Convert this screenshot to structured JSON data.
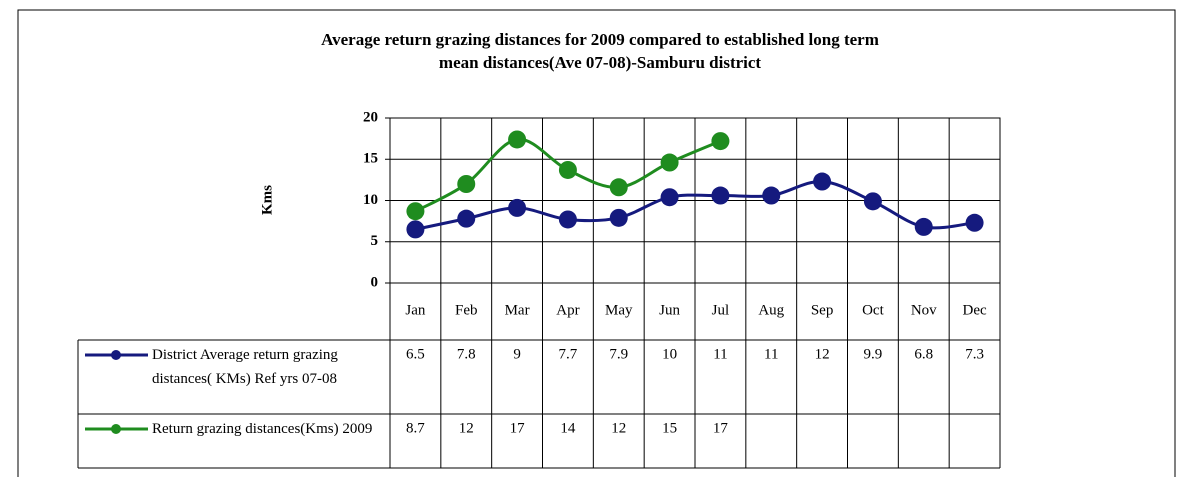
{
  "chart_data": {
    "type": "line",
    "title": "Average return grazing distances for 2009 compared to established long term mean distances(Ave 07-08)-Samburu district",
    "y_label": "Kms",
    "categories": [
      "Jan",
      "Feb",
      "Mar",
      "Apr",
      "May",
      "Jun",
      "Jul",
      "Aug",
      "Sep",
      "Oct",
      "Nov",
      "Dec"
    ],
    "series": [
      {
        "name": "District Average return grazing distances( KMs) Ref yrs 07-08",
        "color": "#151a7e",
        "values": [
          6.5,
          7.8,
          9.1,
          7.7,
          7.9,
          10.4,
          10.6,
          10.6,
          12.3,
          9.9,
          6.8,
          7.3
        ],
        "value_labels": [
          "6.5",
          "7.8",
          "9",
          "7.7",
          "7.9",
          "10",
          "11",
          "11",
          "12",
          "9.9",
          "6.8",
          "7.3"
        ]
      },
      {
        "name": "Return grazing distances(Kms) 2009",
        "color": "#1f8c1f",
        "values": [
          8.7,
          12,
          17.4,
          13.7,
          11.6,
          14.6,
          17.2,
          null,
          null,
          null,
          null,
          null
        ],
        "value_labels": [
          "8.7",
          "12",
          "17",
          "14",
          "12",
          "15",
          "17",
          null,
          null,
          null,
          null,
          null
        ]
      }
    ],
    "ylim": [
      0,
      20
    ],
    "yticks": [
      0,
      5,
      10,
      15,
      20
    ],
    "grid": true,
    "smooth": true
  }
}
